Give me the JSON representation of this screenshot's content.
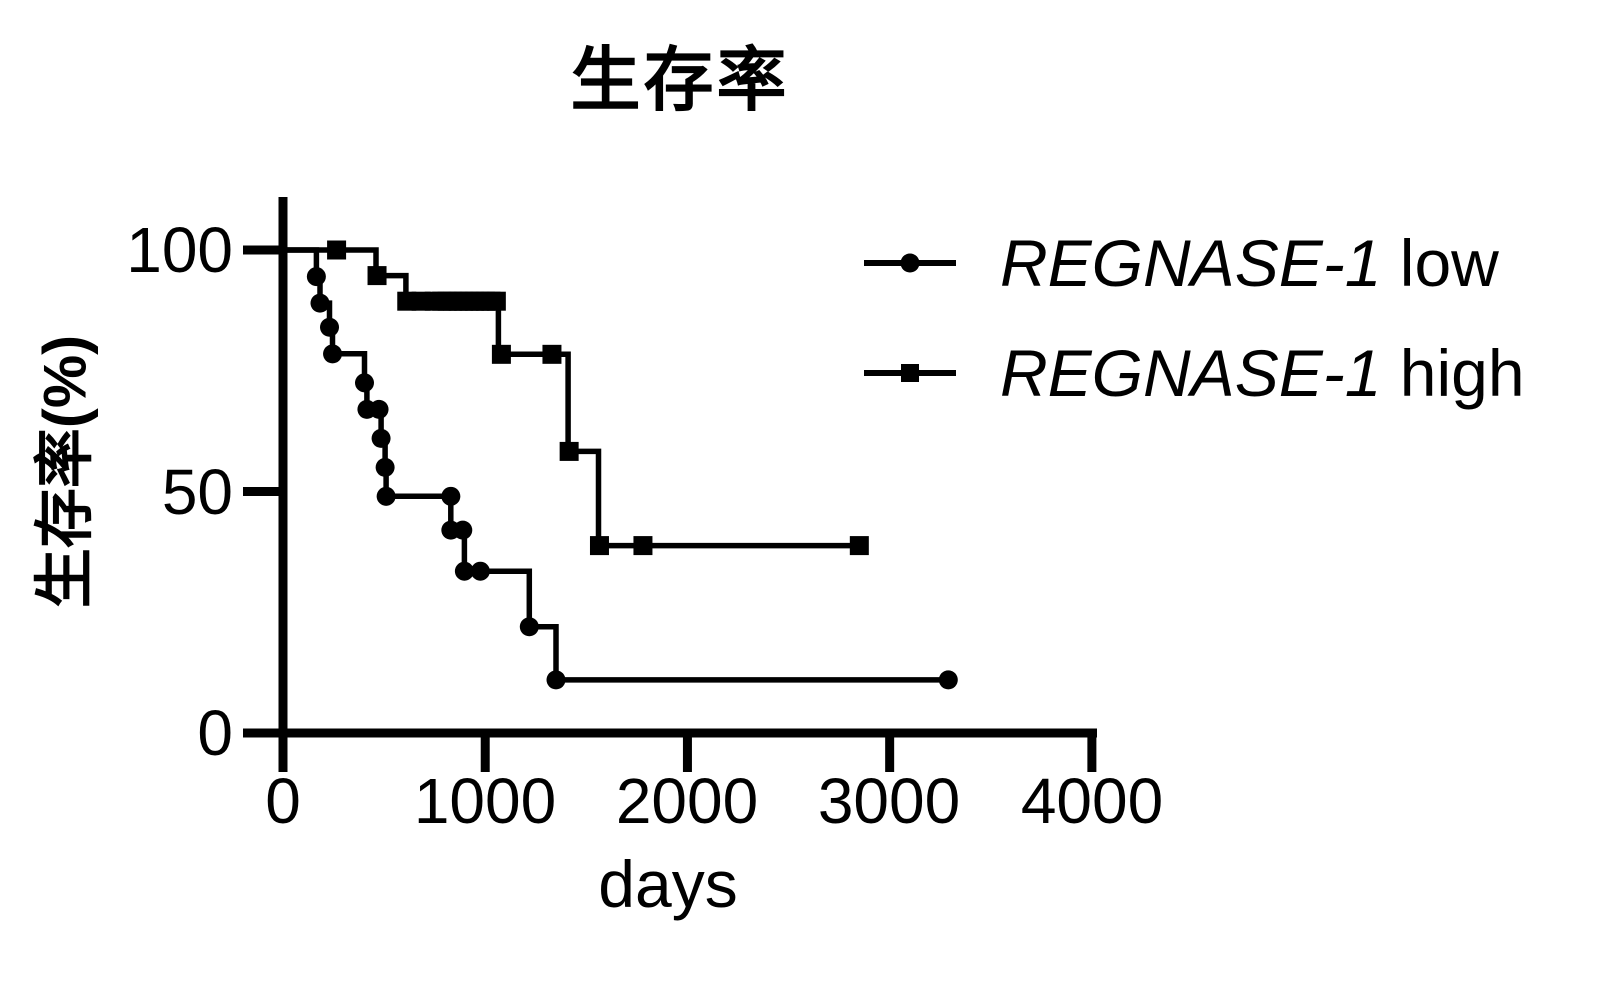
{
  "chart_data": {
    "type": "line",
    "subtype": "kaplan-meier-step",
    "title": "生存率",
    "xlabel": "days",
    "ylabel": "生存率(%)",
    "xlim": [
      0,
      4000
    ],
    "ylim": [
      0,
      100
    ],
    "xticks": [
      0,
      1000,
      2000,
      3000,
      4000
    ],
    "yticks": [
      100,
      50,
      0
    ],
    "grid": false,
    "legend_position": "top-right",
    "foreground_color": "#000000",
    "background_color": "#ffffff",
    "legend": [
      {
        "gene": "REGNASE-1",
        "level": " low",
        "marker": "circle"
      },
      {
        "gene": "REGNASE-1",
        "level": " high",
        "marker": "square"
      }
    ],
    "series": [
      {
        "id": "regnase1-low",
        "label": "REGNASE-1 low",
        "marker": "circle",
        "color": "#000000",
        "step_points": [
          [
            0,
            100
          ],
          [
            165,
            100
          ],
          [
            165,
            94.5
          ],
          [
            183,
            94.5
          ],
          [
            183,
            89
          ],
          [
            230,
            89
          ],
          [
            230,
            84
          ],
          [
            245,
            84
          ],
          [
            245,
            78.5
          ],
          [
            403,
            78.5
          ],
          [
            403,
            72.5
          ],
          [
            415,
            72.5
          ],
          [
            415,
            67
          ],
          [
            485,
            67
          ],
          [
            485,
            61
          ],
          [
            505,
            61
          ],
          [
            505,
            55
          ],
          [
            510,
            55
          ],
          [
            510,
            49
          ],
          [
            830,
            49
          ],
          [
            830,
            42
          ],
          [
            897,
            42
          ],
          [
            897,
            33.5
          ],
          [
            1218,
            33.5
          ],
          [
            1218,
            22
          ],
          [
            1350,
            22
          ],
          [
            1350,
            11
          ],
          [
            3290,
            11
          ]
        ],
        "markers": [
          [
            165,
            94.5
          ],
          [
            183,
            89
          ],
          [
            230,
            84
          ],
          [
            245,
            78.5
          ],
          [
            403,
            72.5
          ],
          [
            415,
            67
          ],
          [
            475,
            67
          ],
          [
            485,
            61
          ],
          [
            505,
            55
          ],
          [
            510,
            49
          ],
          [
            830,
            49
          ],
          [
            830,
            42
          ],
          [
            889,
            42
          ],
          [
            897,
            33.5
          ],
          [
            976,
            33.5
          ],
          [
            1218,
            22
          ],
          [
            1350,
            11
          ],
          [
            3290,
            11
          ]
        ]
      },
      {
        "id": "regnase1-high",
        "label": "REGNASE-1 high",
        "marker": "square",
        "color": "#000000",
        "step_points": [
          [
            0,
            100
          ],
          [
            460,
            100
          ],
          [
            460,
            94.7
          ],
          [
            608,
            94.7
          ],
          [
            608,
            89.4
          ],
          [
            1065,
            89.4
          ],
          [
            1065,
            78.4
          ],
          [
            1410,
            78.4
          ],
          [
            1410,
            58.3
          ],
          [
            1560,
            58.3
          ],
          [
            1560,
            38.8
          ],
          [
            2850,
            38.8
          ]
        ],
        "markers": [
          [
            265,
            100
          ],
          [
            465,
            94.7
          ],
          [
            612,
            89.4
          ],
          [
            683,
            89.4
          ],
          [
            748,
            89.4
          ],
          [
            785,
            89.4
          ],
          [
            812,
            89.4
          ],
          [
            839,
            89.4
          ],
          [
            866,
            89.4
          ],
          [
            893,
            89.4
          ],
          [
            920,
            89.4
          ],
          [
            947,
            89.4
          ],
          [
            974,
            89.4
          ],
          [
            1001,
            89.4
          ],
          [
            1028,
            89.4
          ],
          [
            1055,
            89.4
          ],
          [
            1080,
            78.4
          ],
          [
            1330,
            78.4
          ],
          [
            1415,
            58.3
          ],
          [
            1565,
            38.8
          ],
          [
            1780,
            38.8
          ],
          [
            2850,
            38.8
          ]
        ]
      }
    ]
  }
}
